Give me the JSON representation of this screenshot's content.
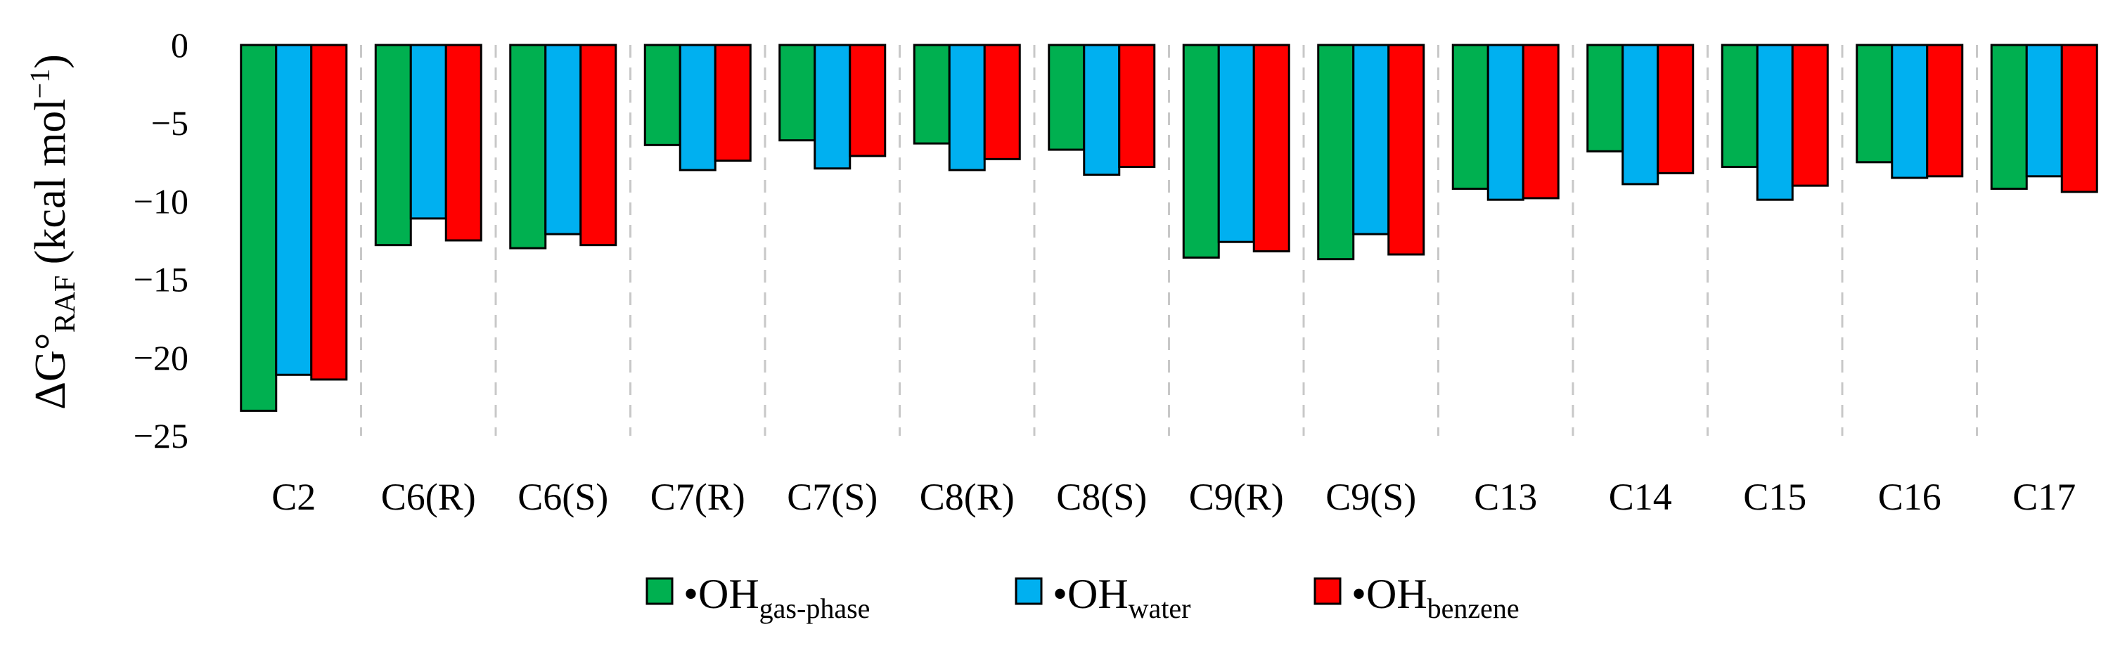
{
  "chart_data": {
    "type": "bar",
    "title": "",
    "xlabel": "",
    "ylabel": {
      "prefix": "ΔG°",
      "subscript": "RAF",
      "units": " (kcal mol",
      "superscript": "−1",
      "suffix": ")"
    },
    "ylim": [
      -25,
      0
    ],
    "yticks": [
      0,
      -5,
      -10,
      -15,
      -20,
      -25
    ],
    "ytick_labels": [
      "0",
      "−5",
      "−10",
      "−15",
      "−20",
      "−25"
    ],
    "grid": "vertical dashed separators between categories",
    "legend_position": "bottom-center",
    "categories": [
      "C2",
      "C6(R)",
      "C6(S)",
      "C7(R)",
      "C7(S)",
      "C8(R)",
      "C8(S)",
      "C9(R)",
      "C9(S)",
      "C13",
      "C14",
      "C15",
      "C16",
      "C17"
    ],
    "series": [
      {
        "name": "•OH gas-phase",
        "label_main": "•OH",
        "label_sub": "gas-phase",
        "color": "#00B050",
        "values": [
          -23.4,
          -12.8,
          -13.0,
          -6.4,
          -6.1,
          -6.3,
          -6.7,
          -13.6,
          -13.7,
          -9.2,
          -6.8,
          -7.8,
          -7.5,
          -9.2
        ]
      },
      {
        "name": "•OH water",
        "label_main": "•OH",
        "label_sub": "water",
        "color": "#00B0F0",
        "values": [
          -21.1,
          -11.1,
          -12.1,
          -8.0,
          -7.9,
          -8.0,
          -8.3,
          -12.6,
          -12.1,
          -9.9,
          -8.9,
          -9.9,
          -8.5,
          -8.4
        ]
      },
      {
        "name": "•OH benzene",
        "label_main": "•OH",
        "label_sub": "benzene",
        "color": "#FF0000",
        "values": [
          -21.4,
          -12.5,
          -12.8,
          -7.4,
          -7.1,
          -7.3,
          -7.8,
          -13.2,
          -13.4,
          -9.8,
          -8.2,
          -9.0,
          -8.4,
          -9.4
        ]
      }
    ]
  }
}
